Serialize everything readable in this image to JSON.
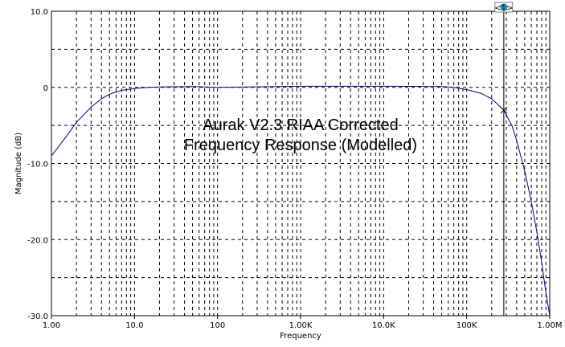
{
  "chart_data": {
    "type": "line",
    "title": "",
    "xlabel": "Frequency",
    "ylabel": "Magnitude (dB)",
    "x_scale": "log",
    "xlim": [
      1,
      1000000
    ],
    "ylim": [
      -30,
      10
    ],
    "grid": true,
    "x_ticks": [
      "1.00",
      "10.0",
      "100",
      "1.00K",
      "10.0K",
      "100K",
      "1.00M"
    ],
    "y_ticks": [
      "10.0",
      "0",
      "-10.0",
      "-20.0",
      "-30.0"
    ],
    "annotation": [
      "Aurak V2.3 RIAA Corrected",
      "Frequency Response (Modelled)"
    ],
    "series": [
      {
        "name": "",
        "color": "#00008b",
        "x": [
          1,
          1.5,
          2,
          3,
          4,
          5,
          7,
          10,
          15,
          20,
          50,
          100,
          1000,
          10000,
          50000,
          70000,
          100000,
          150000,
          200000,
          280000,
          350000,
          400000,
          500000,
          600000,
          700000,
          800000,
          900000,
          1000000
        ],
        "y": [
          -9.0,
          -6.5,
          -4.6,
          -2.6,
          -1.5,
          -0.9,
          -0.4,
          -0.15,
          0.0,
          0.05,
          0.1,
          0.0,
          0.15,
          0.15,
          0.1,
          0.0,
          -0.3,
          -0.8,
          -1.5,
          -3.0,
          -5.0,
          -7.0,
          -11.0,
          -15.0,
          -19.0,
          -23.0,
          -27.0,
          -30.0
        ]
      }
    ],
    "cursor": {
      "x": 280000,
      "y": -3.0,
      "label": "<1>"
    }
  }
}
